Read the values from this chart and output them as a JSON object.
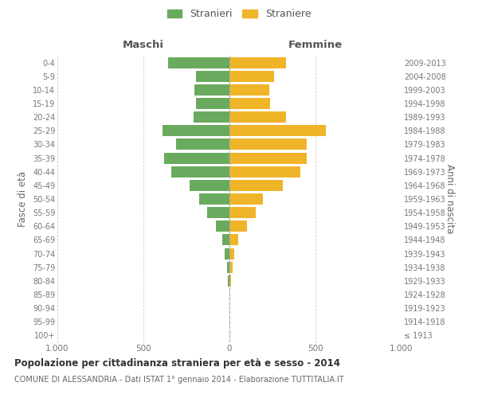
{
  "age_groups": [
    "100+",
    "95-99",
    "90-94",
    "85-89",
    "80-84",
    "75-79",
    "70-74",
    "65-69",
    "60-64",
    "55-59",
    "50-54",
    "45-49",
    "40-44",
    "35-39",
    "30-34",
    "25-29",
    "20-24",
    "15-19",
    "10-14",
    "5-9",
    "0-4"
  ],
  "birth_years": [
    "≤ 1913",
    "1914-1918",
    "1919-1923",
    "1924-1928",
    "1929-1933",
    "1934-1938",
    "1939-1943",
    "1944-1948",
    "1949-1953",
    "1954-1958",
    "1959-1963",
    "1964-1968",
    "1969-1973",
    "1974-1978",
    "1979-1983",
    "1984-1988",
    "1989-1993",
    "1994-1998",
    "1999-2003",
    "2004-2008",
    "2009-2013"
  ],
  "maschi": [
    0,
    0,
    0,
    0,
    8,
    12,
    30,
    40,
    80,
    130,
    175,
    230,
    340,
    380,
    310,
    390,
    210,
    195,
    205,
    195,
    355
  ],
  "femmine": [
    0,
    0,
    0,
    0,
    10,
    18,
    30,
    50,
    100,
    155,
    195,
    310,
    410,
    450,
    450,
    560,
    330,
    235,
    230,
    260,
    330
  ],
  "color_maschi": "#6aaa5e",
  "color_femmine": "#f0b429",
  "background_color": "#ffffff",
  "grid_color": "#cccccc",
  "title": "Popolazione per cittadinanza straniera per età e sesso - 2014",
  "subtitle": "COMUNE DI ALESSANDRIA - Dati ISTAT 1° gennaio 2014 - Elaborazione TUTTITALIA.IT",
  "left_label": "Maschi",
  "right_label": "Femmine",
  "ylabel_left": "Fasce di età",
  "ylabel_right": "Anni di nascita",
  "legend_maschi": "Stranieri",
  "legend_femmine": "Straniere",
  "xlim": 1000,
  "xtick_labels": [
    "1.000",
    "500",
    "0",
    "500",
    "1.000"
  ]
}
